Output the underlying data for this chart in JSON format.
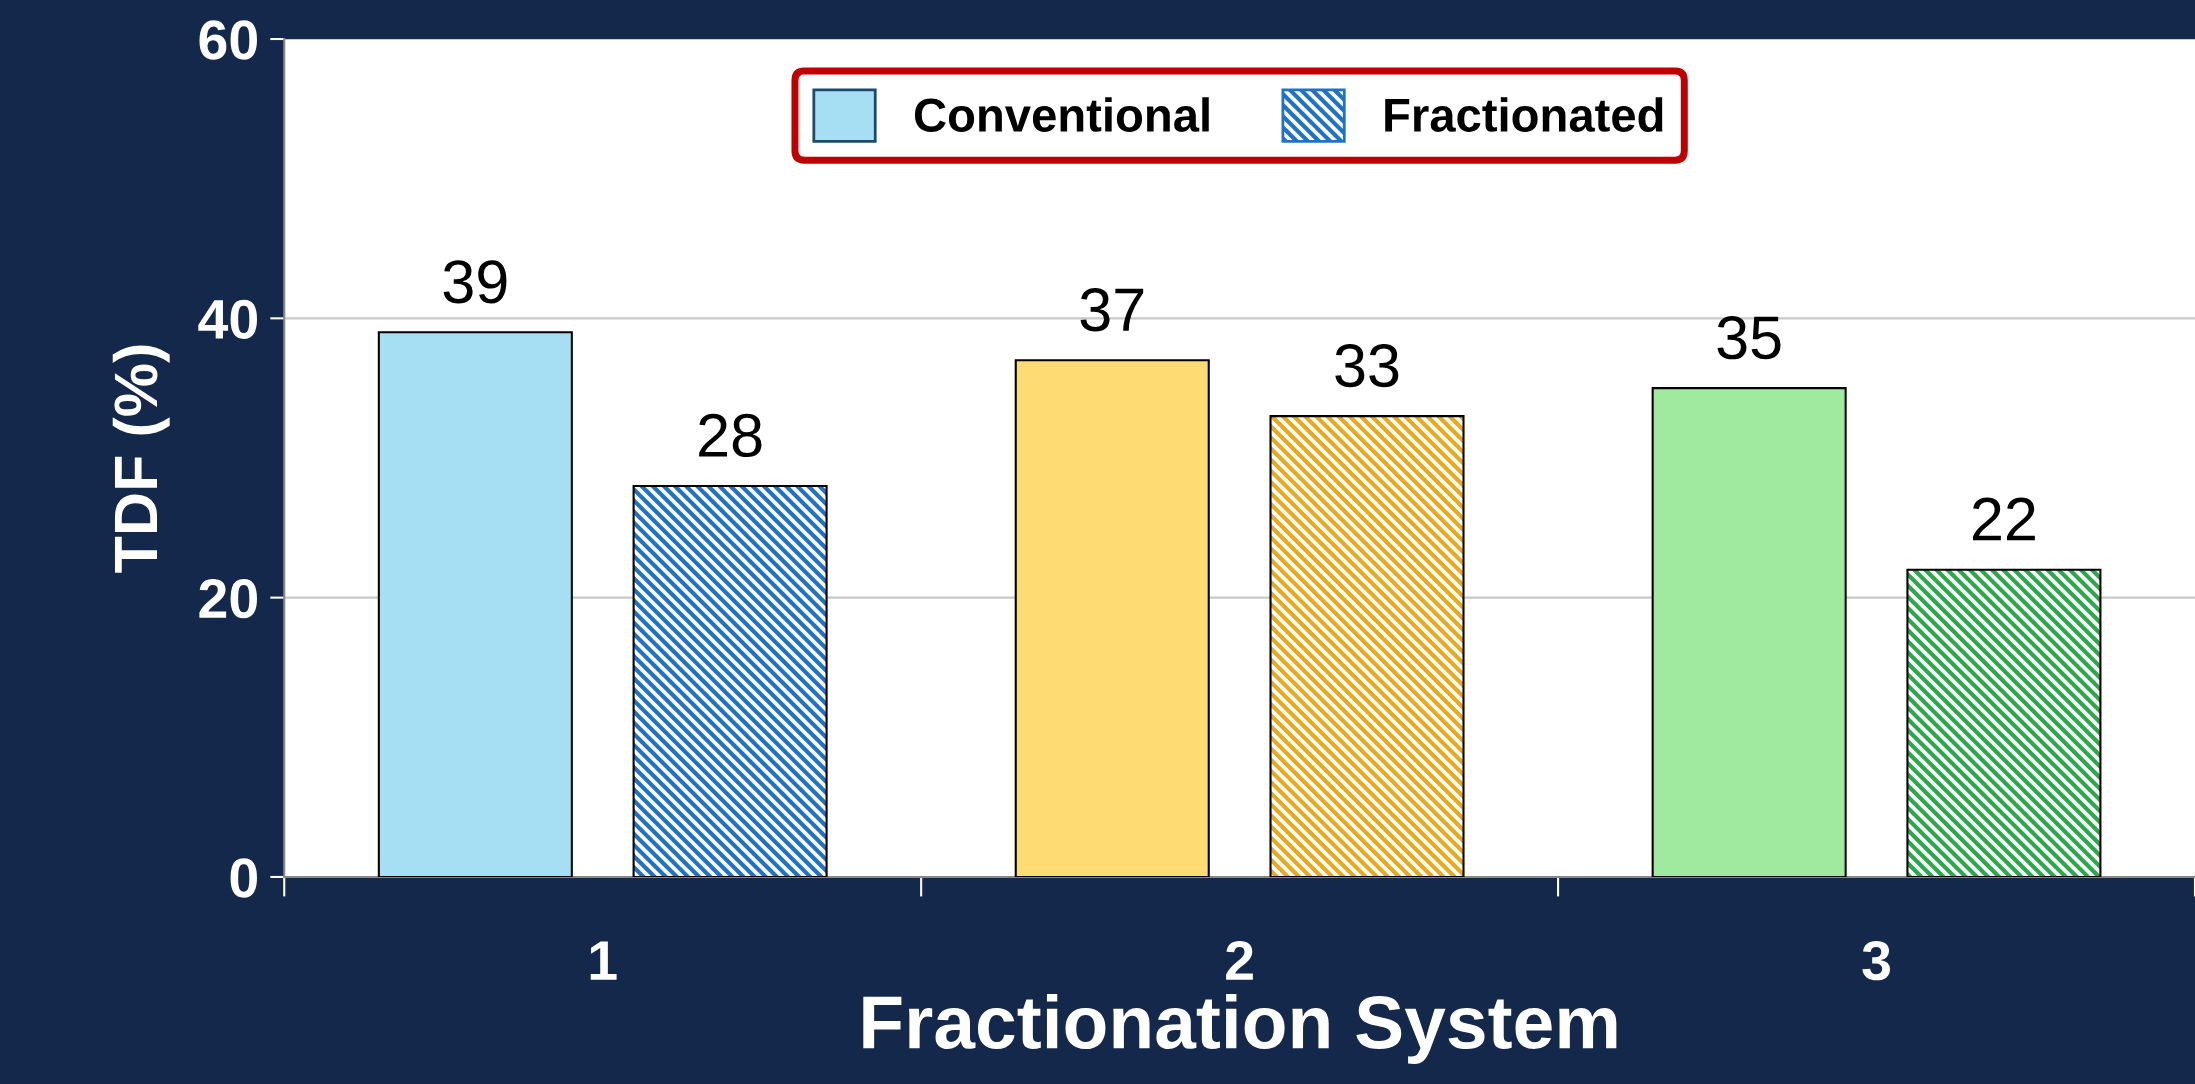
{
  "chart_data": {
    "type": "bar",
    "xlabel": "Fractionation System",
    "ylabel": "TDF (%)",
    "categories": [
      "1",
      "2",
      "3"
    ],
    "series": [
      {
        "name": "Conventional",
        "colors": [
          "#a6def3",
          "#ffdc73",
          "#a0eaa0"
        ],
        "values": [
          39,
          37,
          35
        ]
      },
      {
        "name": "Fractionated",
        "colors": [
          "#1f72c4",
          "#e8a91a",
          "#2aa84a"
        ],
        "values": [
          28,
          33,
          22
        ]
      }
    ],
    "ylim": [
      0,
      60
    ],
    "yticks": [
      0,
      20,
      40,
      60
    ],
    "grid": "y",
    "legend": "top",
    "data_labels": true
  }
}
